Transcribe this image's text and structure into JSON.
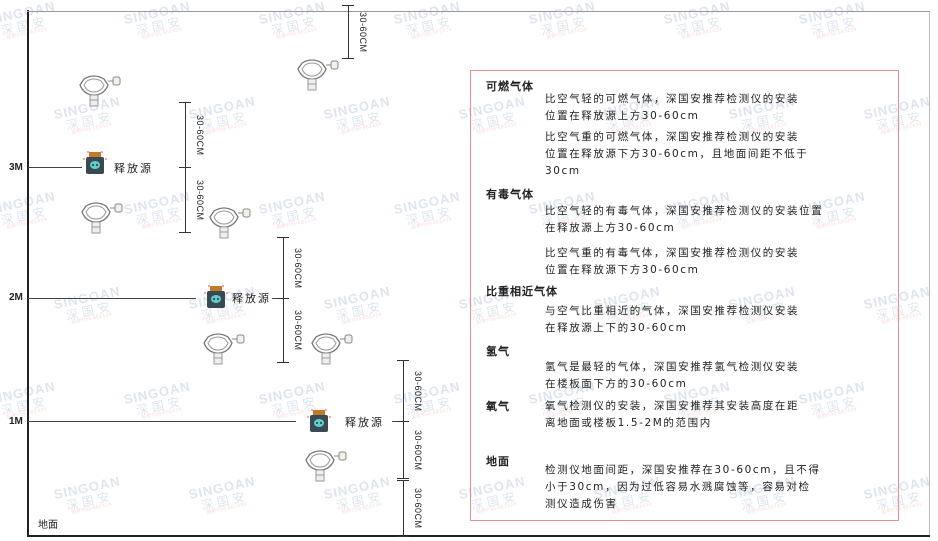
{
  "watermark": {
    "brand": "SINGOAN",
    "cn": "深国安",
    "small": "股票代码:881434"
  },
  "levels": [
    "3M",
    "2M",
    "1M"
  ],
  "ground_label": "地面",
  "source_label": "释放源",
  "dimension_label": "30-60CM",
  "legend": {
    "sections": [
      {
        "title": "可燃气体",
        "paragraphs": [
          "比空气轻的可燃气体，深国安推荐检测仪的安装\n位置在释放源上方30-60cm",
          "比空气重的可燃气体，深国安推荐检测仪的安装\n位置在释放源下方30-60cm，且地面间距不低于\n30cm"
        ]
      },
      {
        "title": "有毒气体",
        "paragraphs": [
          "比空气轻的有毒气体，深国安推荐检测仪的安装位置\n在释放源上方30-60cm",
          "比空气重的有毒气体，深国安推荐检测仪的安装\n位置在释放源下方30-60cm"
        ]
      },
      {
        "title": "比重相近气体",
        "paragraphs": [
          "与空气比重相近的气体，深国安推荐检测仪安装\n在释放源上下的30-60cm"
        ]
      },
      {
        "title": "氢气",
        "paragraphs": [
          "氢气是最轻的气体，深国安推荐氢气检测仪安装\n在楼板面下方的30-60cm"
        ]
      },
      {
        "title": "氧气",
        "paragraphs": [
          "氧气检测仪的安装，深国安推荐其安装高度在距\n离地面或楼板1.5-2M的范围内"
        ]
      },
      {
        "title": "地面",
        "paragraphs": [
          "检测仪地面间距，深国安推荐在30-60cm，且不得\n小于30cm，因为过低容易水溅腐蚀等，容易对检\n测仪造成伤害"
        ]
      }
    ]
  },
  "colors": {
    "border": "#e89090",
    "source_body": "#3a4a55",
    "source_lid": "#c07a2a",
    "source_face": "#5fd0c8"
  }
}
